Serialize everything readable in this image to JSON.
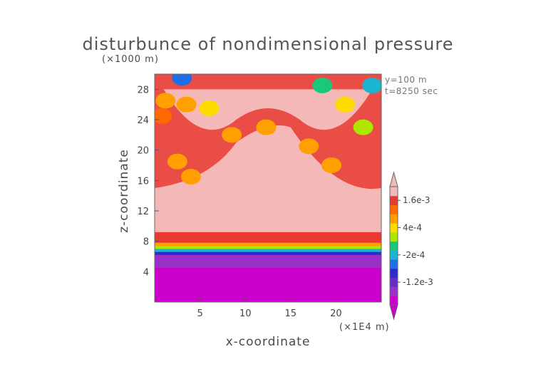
{
  "chart_data": {
    "type": "heatmap",
    "title": "disturbunce of nondimensional pressure",
    "xlabel": "x-coordinate",
    "ylabel": "z-coordinate",
    "x_unit_label": "(×1E4 m)",
    "y_unit_label": "(×1000 m)",
    "annotations": [
      "y=100 m",
      "t=8250 sec"
    ],
    "xlim": [
      0,
      25
    ],
    "ylim": [
      0,
      30
    ],
    "x_ticks": [
      5,
      10,
      15,
      20
    ],
    "y_ticks": [
      4,
      8,
      12,
      16,
      20,
      24,
      28
    ],
    "colorbar": {
      "levels": [
        -0.002,
        -0.0016,
        -0.0012,
        -0.0008,
        -0.0004,
        -0.0002,
        0,
        0.0002,
        0.0004,
        0.0008,
        0.0012,
        0.0016,
        0.002
      ],
      "colors": [
        "#cc00cc",
        "#9b30c8",
        "#6a2cc8",
        "#2b2bd0",
        "#1e6ee6",
        "#19b4d2",
        "#19c87a",
        "#aee600",
        "#ffdc00",
        "#ff9f00",
        "#ff6a00",
        "#e83a30",
        "#f4b8b8"
      ],
      "tick_labels": [
        "1.6e-3",
        "4e-4",
        "-2e-4",
        "-1.2e-3"
      ],
      "tick_values": [
        0.0016,
        0.0004,
        -0.0002,
        -0.0012
      ],
      "extend": "both"
    },
    "layers": [
      {
        "z_from": 0,
        "z_to": 5.5,
        "color": "#cc00cc"
      },
      {
        "z_from": 5.5,
        "z_to": 7.2,
        "color": "#9b30c8"
      },
      {
        "z_from": 7.2,
        "z_to": 7.6,
        "color": "#2b2bd0"
      },
      {
        "z_from": 7.6,
        "z_to": 8.0,
        "color": "#19b4d2"
      },
      {
        "z_from": 8.0,
        "z_to": 8.4,
        "color": "#aee600"
      },
      {
        "z_from": 8.4,
        "z_to": 8.8,
        "color": "#ff9f00"
      },
      {
        "z_from": 8.8,
        "z_to": 10.2,
        "color": "#e83a30"
      },
      {
        "z_from": 10.2,
        "z_to": 30,
        "color": "#f4b8b8"
      }
    ],
    "upper_band_z": [
      15,
      30
    ],
    "blobs": [
      {
        "x": 1.2,
        "z": 26.5,
        "color": "#ff9f00"
      },
      {
        "x": 3.5,
        "z": 26.0,
        "color": "#ff9f00"
      },
      {
        "x": 6.0,
        "z": 25.5,
        "color": "#ffdc00"
      },
      {
        "x": 8.5,
        "z": 22.0,
        "color": "#ff9f00"
      },
      {
        "x": 12.3,
        "z": 23.0,
        "color": "#ff9f00"
      },
      {
        "x": 2.5,
        "z": 18.5,
        "color": "#ff9f00"
      },
      {
        "x": 4.0,
        "z": 16.5,
        "color": "#ff9f00"
      },
      {
        "x": 17.0,
        "z": 20.5,
        "color": "#ff9f00"
      },
      {
        "x": 19.5,
        "z": 18.0,
        "color": "#ff9f00"
      },
      {
        "x": 21.0,
        "z": 26.0,
        "color": "#ffdc00"
      },
      {
        "x": 23.0,
        "z": 23.0,
        "color": "#aee600"
      },
      {
        "x": 18.5,
        "z": 28.5,
        "color": "#19c87a"
      },
      {
        "x": 24.0,
        "z": 28.5,
        "color": "#19b4d2"
      },
      {
        "x": 3.0,
        "z": 29.5,
        "color": "#1e6ee6"
      },
      {
        "x": 0.8,
        "z": 24.5,
        "color": "#ff6a00"
      }
    ]
  }
}
